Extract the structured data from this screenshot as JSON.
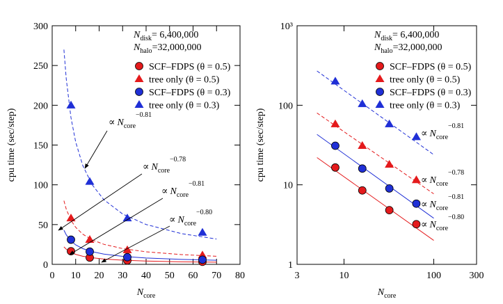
{
  "chart_data": [
    {
      "type": "scatter",
      "xlabel": {
        "var": "N",
        "sub": "core"
      },
      "ylabel": "cpu time (sec/step)",
      "xlim": [
        0,
        80
      ],
      "xticks": [
        0,
        10,
        20,
        30,
        40,
        50,
        60,
        70,
        80
      ],
      "ylim": [
        0,
        300
      ],
      "yticks": [
        0,
        50,
        100,
        150,
        200,
        250,
        300
      ],
      "info": [
        {
          "var": "N",
          "sub": "disk",
          "text": "=  6,400,000"
        },
        {
          "var": "N",
          "sub": "halo",
          "text": "=32,000,000"
        }
      ],
      "series": [
        {
          "name": "SCF–FDPS (θ = 0.5)",
          "color": "#e41a1c",
          "marker": "circle",
          "x": [
            8,
            16,
            32,
            64
          ],
          "values": [
            16.5,
            8.5,
            4.8,
            3.2
          ],
          "fit": {
            "linestyle": "solid",
            "x": [
              5,
              6,
              8,
              10,
              13,
              17,
              22,
              30,
              40,
              55,
              70
            ],
            "values": [
              22,
              19.0,
              15.1,
              12.6,
              10.2,
              8.3,
              6.7,
              5.2,
              4.2,
              3.2,
              2.7
            ]
          }
        },
        {
          "name": "tree only (θ = 0.5)",
          "color": "#e41a1c",
          "marker": "triangle",
          "x": [
            8,
            16,
            32,
            64
          ],
          "values": [
            58,
            31,
            18,
            11.5
          ],
          "fit": {
            "linestyle": "dashed",
            "x": [
              5,
              6,
              8,
              10,
              13,
              17,
              22,
              30,
              40,
              55,
              70
            ],
            "values": [
              80,
              69.4,
              55.4,
              46.6,
              38.0,
              30.8,
              25.2,
              19.8,
              15.8,
              12.3,
              10.2
            ]
          }
        },
        {
          "name": "SCF–FDPS (θ = 0.3)",
          "color": "#1f2fd6",
          "marker": "circle",
          "x": [
            8,
            16,
            32,
            64
          ],
          "values": [
            31,
            16,
            9,
            5.8
          ],
          "fit": {
            "linestyle": "solid",
            "x": [
              5,
              6,
              8,
              10,
              13,
              17,
              22,
              30,
              40,
              55,
              70
            ],
            "values": [
              43,
              37.1,
              29.4,
              24.5,
              19.8,
              16.0,
              12.9,
              10.1,
              8.0,
              6.2,
              5.1
            ]
          }
        },
        {
          "name": "tree only (θ = 0.3)",
          "color": "#1f2fd6",
          "marker": "triangle",
          "x": [
            8,
            16,
            32,
            64
          ],
          "values": [
            200,
            104,
            58,
            40
          ],
          "fit": {
            "linestyle": "dashed",
            "x": [
              5,
              6,
              8,
              10,
              13,
              17,
              22,
              30,
              40,
              55,
              70
            ],
            "values": [
              270,
              233,
              184.5,
              154,
              124.5,
              100.2,
              81.3,
              63.3,
              50.1,
              38.7,
              31.8
            ]
          }
        }
      ],
      "annotations": [
        {
          "symbol": "∝",
          "var": "N",
          "sub": "core",
          "sup": "−0.81"
        },
        {
          "symbol": "∝",
          "var": "N",
          "sub": "core",
          "sup": "−0.78"
        },
        {
          "symbol": "∝",
          "var": "N",
          "sub": "core",
          "sup": "−0.81"
        },
        {
          "symbol": "∝",
          "var": "N",
          "sub": "core",
          "sup": "−0.80"
        }
      ]
    },
    {
      "type": "scatter",
      "xscale": "log",
      "yscale": "log",
      "xlabel": {
        "var": "N",
        "sub": "core"
      },
      "ylabel": "cpu time (sec/step)",
      "xlim": [
        3,
        300
      ],
      "xticks": [
        3,
        10,
        100,
        300
      ],
      "ylim": [
        1,
        1000
      ],
      "yticks": [
        1,
        10,
        100,
        {
          "value": 1000,
          "label": "10³"
        }
      ],
      "info": [
        {
          "var": "N",
          "sub": "disk",
          "text": "=  6,400,000"
        },
        {
          "var": "N",
          "sub": "halo",
          "text": "=32,000,000"
        }
      ],
      "series": [
        {
          "name": "SCF–FDPS (θ = 0.5)",
          "color": "#e41a1c",
          "marker": "circle",
          "x": [
            8,
            16,
            32,
            64
          ],
          "values": [
            16.5,
            8.5,
            4.8,
            3.2
          ],
          "fit": {
            "linestyle": "solid",
            "x": [
              5,
              100
            ],
            "values": [
              22,
              2.0
            ]
          }
        },
        {
          "name": "tree only (θ = 0.5)",
          "color": "#e41a1c",
          "marker": "triangle",
          "x": [
            8,
            16,
            32,
            64
          ],
          "values": [
            58,
            31,
            18,
            11.5
          ],
          "fit": {
            "linestyle": "dashed",
            "x": [
              5,
              100
            ],
            "values": [
              80,
              7.7
            ]
          }
        },
        {
          "name": "SCF–FDPS (θ = 0.3)",
          "color": "#1f2fd6",
          "marker": "circle",
          "x": [
            8,
            16,
            32,
            64
          ],
          "values": [
            31,
            16,
            9,
            5.8
          ],
          "fit": {
            "linestyle": "solid",
            "x": [
              5,
              100
            ],
            "values": [
              43,
              3.8
            ]
          }
        },
        {
          "name": "tree only (θ = 0.3)",
          "color": "#1f2fd6",
          "marker": "triangle",
          "x": [
            8,
            16,
            32,
            64
          ],
          "values": [
            200,
            104,
            58,
            40
          ],
          "fit": {
            "linestyle": "dashed",
            "x": [
              5,
              100
            ],
            "values": [
              270,
              23.9
            ]
          }
        }
      ],
      "annotations": [
        {
          "symbol": "∝",
          "var": "N",
          "sub": "core",
          "sup": "−0.81"
        },
        {
          "symbol": "∝",
          "var": "N",
          "sub": "core",
          "sup": "−0.78"
        },
        {
          "symbol": "∝",
          "var": "N",
          "sub": "core",
          "sup": "−0.81"
        },
        {
          "symbol": "∝",
          "var": "N",
          "sub": "core",
          "sup": "−0.80"
        }
      ]
    }
  ]
}
